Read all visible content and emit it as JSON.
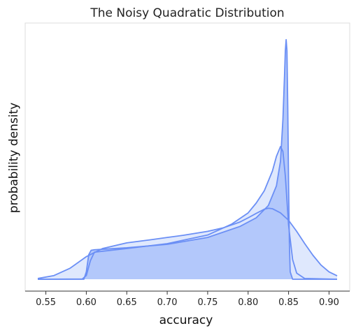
{
  "chart_data": {
    "type": "area",
    "title": "The Noisy Quadratic Distribution",
    "xlabel": "accuracy",
    "ylabel": "probability density",
    "xlim": [
      0.54,
      0.91
    ],
    "ylim": [
      0,
      1.0
    ],
    "xticks": [
      "0.55",
      "0.60",
      "0.65",
      "0.70",
      "0.75",
      "0.80",
      "0.85",
      "0.90"
    ],
    "yticks_shown": false,
    "grid": false,
    "legend": "none",
    "colors": {
      "line": "#6b8ff5",
      "fill_dark": "#b3c8fb",
      "fill_light": "#dce6fd",
      "frame": "#dddddd",
      "axis": "#333333"
    },
    "series": [
      {
        "x": [
          0.54,
          0.56,
          0.58,
          0.6,
          0.62,
          0.65,
          0.68,
          0.7,
          0.72,
          0.75,
          0.77,
          0.79,
          0.8,
          0.81,
          0.82,
          0.825,
          0.83,
          0.84,
          0.85,
          0.86,
          0.87,
          0.88,
          0.89,
          0.9,
          0.91
        ],
        "y": [
          0.003,
          0.015,
          0.045,
          0.092,
          0.125,
          0.148,
          0.161,
          0.17,
          0.179,
          0.195,
          0.21,
          0.233,
          0.25,
          0.268,
          0.285,
          0.289,
          0.287,
          0.27,
          0.24,
          0.195,
          0.145,
          0.098,
          0.058,
          0.03,
          0.014
        ],
        "fill": "fill_light"
      },
      {
        "x": [
          0.54,
          0.595,
          0.6,
          0.605,
          0.61,
          0.65,
          0.7,
          0.75,
          0.78,
          0.8,
          0.81,
          0.82,
          0.83,
          0.835,
          0.84,
          0.843,
          0.846,
          0.85,
          0.855,
          0.86,
          0.87,
          0.91
        ],
        "y": [
          0.0,
          0.001,
          0.015,
          0.075,
          0.11,
          0.125,
          0.145,
          0.18,
          0.225,
          0.27,
          0.31,
          0.36,
          0.44,
          0.5,
          0.54,
          0.52,
          0.42,
          0.22,
          0.08,
          0.025,
          0.003,
          0.0
        ],
        "fill": "fill_light"
      },
      {
        "x": [
          0.54,
          0.597,
          0.6,
          0.603,
          0.606,
          0.61,
          0.65,
          0.7,
          0.75,
          0.79,
          0.81,
          0.825,
          0.835,
          0.84,
          0.843,
          0.845,
          0.846,
          0.847,
          0.848,
          0.849,
          0.85,
          0.851,
          0.852,
          0.855,
          0.91
        ],
        "y": [
          0.0,
          0.0,
          0.03,
          0.1,
          0.118,
          0.12,
          0.128,
          0.142,
          0.17,
          0.215,
          0.25,
          0.3,
          0.38,
          0.48,
          0.65,
          0.83,
          0.93,
          0.975,
          0.93,
          0.7,
          0.4,
          0.15,
          0.03,
          0.0,
          0.0
        ],
        "fill": "fill_dark"
      }
    ]
  }
}
